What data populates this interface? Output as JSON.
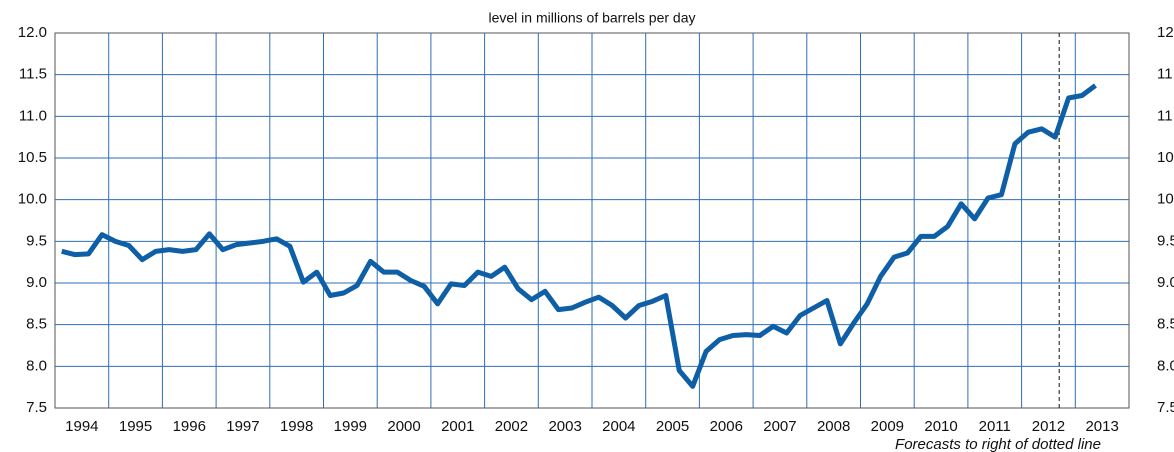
{
  "chart_data": {
    "type": "line",
    "title": "level in millions of barrels per day",
    "annotation": "Forecasts to right of dotted line",
    "forecast_x": 2012.7,
    "xlim": [
      1994,
      2014
    ],
    "xgrid": [
      1994,
      1995,
      1996,
      1997,
      1998,
      1999,
      2000,
      2001,
      2002,
      2003,
      2004,
      2005,
      2006,
      2007,
      2008,
      2009,
      2010,
      2011,
      2012,
      2013,
      2014
    ],
    "xticks": [
      {
        "value": 1994.5,
        "label": "1994"
      },
      {
        "value": 1995.5,
        "label": "1995"
      },
      {
        "value": 1996.5,
        "label": "1996"
      },
      {
        "value": 1997.5,
        "label": "1997"
      },
      {
        "value": 1998.5,
        "label": "1998"
      },
      {
        "value": 1999.5,
        "label": "1999"
      },
      {
        "value": 2000.5,
        "label": "2000"
      },
      {
        "value": 2001.5,
        "label": "2001"
      },
      {
        "value": 2002.5,
        "label": "2002"
      },
      {
        "value": 2003.5,
        "label": "2003"
      },
      {
        "value": 2004.5,
        "label": "2004"
      },
      {
        "value": 2005.5,
        "label": "2005"
      },
      {
        "value": 2006.5,
        "label": "2006"
      },
      {
        "value": 2007.5,
        "label": "2007"
      },
      {
        "value": 2008.5,
        "label": "2008"
      },
      {
        "value": 2009.5,
        "label": "2009"
      },
      {
        "value": 2010.5,
        "label": "2010"
      },
      {
        "value": 2011.5,
        "label": "2011"
      },
      {
        "value": 2012.5,
        "label": "2012"
      },
      {
        "value": 2013.5,
        "label": "2013"
      }
    ],
    "ylim": [
      7.5,
      12.0
    ],
    "yticks": [
      {
        "value": 7.5,
        "label": "7.5"
      },
      {
        "value": 8,
        "label": "8.0"
      },
      {
        "value": 8.5,
        "label": "8.5"
      },
      {
        "value": 9,
        "label": "9.0"
      },
      {
        "value": 9.5,
        "label": "9.5"
      },
      {
        "value": 10,
        "label": "10.0"
      },
      {
        "value": 10.5,
        "label": "10.5"
      },
      {
        "value": 11,
        "label": "11.0"
      },
      {
        "value": 11.5,
        "label": "11.5"
      },
      {
        "value": 12,
        "label": "12.0"
      }
    ],
    "grid": true,
    "grid_color": "#2e6fb7",
    "x": [
      1994.125,
      1994.375,
      1994.625,
      1994.875,
      1995.125,
      1995.375,
      1995.625,
      1995.875,
      1996.125,
      1996.375,
      1996.625,
      1996.875,
      1997.125,
      1997.375,
      1997.625,
      1997.875,
      1998.125,
      1998.375,
      1998.625,
      1998.875,
      1999.125,
      1999.375,
      1999.625,
      1999.875,
      2000.125,
      2000.375,
      2000.625,
      2000.875,
      2001.125,
      2001.375,
      2001.625,
      2001.875,
      2002.125,
      2002.375,
      2002.625,
      2002.875,
      2003.125,
      2003.375,
      2003.625,
      2003.875,
      2004.125,
      2004.375,
      2004.625,
      2004.875,
      2005.125,
      2005.375,
      2005.625,
      2005.875,
      2006.125,
      2006.375,
      2006.625,
      2006.875,
      2007.125,
      2007.375,
      2007.625,
      2007.875,
      2008.125,
      2008.375,
      2008.625,
      2008.875,
      2009.125,
      2009.375,
      2009.625,
      2009.875,
      2010.125,
      2010.375,
      2010.625,
      2010.875,
      2011.125,
      2011.375,
      2011.625,
      2011.875,
      2012.125,
      2012.375,
      2012.625,
      2012.875,
      2013.125,
      2013.375
    ],
    "series": [
      {
        "color": "#0f5fa6",
        "values": [
          9.38,
          9.34,
          9.35,
          9.58,
          9.5,
          9.45,
          9.28,
          9.38,
          9.4,
          9.38,
          9.4,
          9.59,
          9.4,
          9.46,
          9.48,
          9.5,
          9.53,
          9.44,
          9.01,
          9.13,
          8.85,
          8.88,
          8.97,
          9.26,
          9.13,
          9.13,
          9.03,
          8.96,
          8.75,
          8.99,
          8.97,
          9.13,
          9.08,
          9.19,
          8.93,
          8.8,
          8.9,
          8.68,
          8.7,
          8.77,
          8.83,
          8.73,
          8.58,
          8.73,
          8.78,
          8.85,
          7.95,
          7.76,
          8.18,
          8.32,
          8.37,
          8.38,
          8.37,
          8.48,
          8.4,
          8.61,
          8.7,
          8.79,
          8.27,
          8.52,
          8.75,
          9.08,
          9.31,
          9.36,
          9.56,
          9.56,
          9.68,
          9.95,
          9.77,
          10.02,
          10.06,
          10.67,
          10.81,
          10.85,
          10.75,
          11.22,
          11.25,
          11.37
        ]
      }
    ]
  }
}
